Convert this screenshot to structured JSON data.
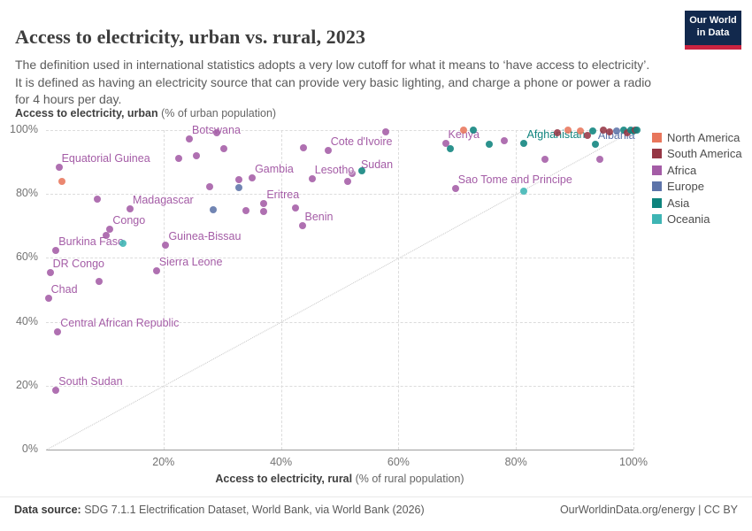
{
  "header": {
    "title": "Access to electricity, urban vs. rural, 2023",
    "subtitle": "The definition used in international statistics adopts a very low cutoff for what it means to ‘have access to electricity’. It is defined as having an electricity source that can provide very basic lighting, and charge a phone or power a radio for 4 hours per day.",
    "logo_line1": "Our World",
    "logo_line2": "in Data"
  },
  "chart_data": {
    "type": "scatter",
    "title": "Access to electricity, urban vs. rural, 2023",
    "x_axis": {
      "label_bold": "Access to electricity, rural",
      "label_rest": " (% of rural population)",
      "range": [
        0,
        100
      ],
      "ticks": [
        {
          "v": 20,
          "label": "20%"
        },
        {
          "v": 40,
          "label": "40%"
        },
        {
          "v": 60,
          "label": "60%"
        },
        {
          "v": 80,
          "label": "80%"
        },
        {
          "v": 100,
          "label": "100%"
        }
      ]
    },
    "y_axis": {
      "label_bold": "Access to electricity, urban",
      "label_rest": " (% of urban population)",
      "range": [
        0,
        100
      ],
      "ticks": [
        {
          "v": 0,
          "label": "0%"
        },
        {
          "v": 20,
          "label": "20%"
        },
        {
          "v": 40,
          "label": "40%"
        },
        {
          "v": 60,
          "label": "60%"
        },
        {
          "v": 80,
          "label": "80%"
        },
        {
          "v": 100,
          "label": "100%"
        }
      ]
    },
    "grid": true,
    "identity_line": true,
    "legend_position": "right",
    "colors": {
      "North America": "#e8765c",
      "South America": "#963745",
      "Africa": "#a45ca6",
      "Europe": "#5d74a9",
      "Asia": "#0e837d",
      "Oceania": "#3eb5b4"
    },
    "legend": [
      "North America",
      "South America",
      "Africa",
      "Europe",
      "Asia",
      "Oceania"
    ],
    "points": [
      {
        "n": "Equatorial Guinea",
        "x": 2.2,
        "y": 88.4,
        "c": "Africa"
      },
      {
        "n": "Botswana",
        "x": 24.4,
        "y": 97.3,
        "c": "Africa"
      },
      {
        "n": "Cote d'Ivoire",
        "x": 48.0,
        "y": 93.7,
        "c": "Africa"
      },
      {
        "n": "Kenya",
        "x": 68.0,
        "y": 95.8,
        "c": "Africa"
      },
      {
        "n": "Afghanistan",
        "x": 81.4,
        "y": 95.9,
        "c": "Asia"
      },
      {
        "n": "Albania",
        "x": 93.5,
        "y": 95.6,
        "c": "Asia",
        "lc": "Europe"
      },
      {
        "n": "Sudan",
        "x": 52.1,
        "y": 86.5,
        "c": "Africa",
        "ldx": 10
      },
      {
        "n": "Lesotho",
        "x": 45.3,
        "y": 84.7,
        "c": "Africa"
      },
      {
        "n": "Gambia",
        "x": 35.1,
        "y": 85.0,
        "c": "Africa"
      },
      {
        "n": "Eritrea",
        "x": 37.1,
        "y": 77.1,
        "c": "Africa"
      },
      {
        "n": "Benin",
        "x": 43.6,
        "y": 70.1,
        "c": "Africa"
      },
      {
        "n": "Madagascar",
        "x": 14.3,
        "y": 75.4,
        "c": "Africa"
      },
      {
        "n": "Congo",
        "x": 10.9,
        "y": 68.9,
        "c": "Africa"
      },
      {
        "n": "Burkina Faso",
        "x": 1.7,
        "y": 62.3,
        "c": "Africa"
      },
      {
        "n": "Guinea-Bissau",
        "x": 20.4,
        "y": 64.1,
        "c": "Africa"
      },
      {
        "n": "DR Congo",
        "x": 0.7,
        "y": 55.5,
        "c": "Africa"
      },
      {
        "n": "Sierra Leone",
        "x": 18.8,
        "y": 56.0,
        "c": "Africa"
      },
      {
        "n": "Chad",
        "x": 0.4,
        "y": 47.4,
        "c": "Africa"
      },
      {
        "n": "Central African Republic",
        "x": 2.0,
        "y": 36.8,
        "c": "Africa"
      },
      {
        "n": "South Sudan",
        "x": 1.7,
        "y": 18.5,
        "c": "Africa"
      },
      {
        "n": "Sao Tome and Principe",
        "x": 69.7,
        "y": 81.7,
        "c": "Africa"
      },
      {
        "x": 2.7,
        "y": 83.8,
        "c": "North America"
      },
      {
        "x": 8.7,
        "y": 78.5,
        "c": "Africa"
      },
      {
        "x": 10.2,
        "y": 66.9,
        "c": "Africa"
      },
      {
        "x": 13.1,
        "y": 64.6,
        "c": "Oceania"
      },
      {
        "x": 9.1,
        "y": 52.6,
        "c": "Africa"
      },
      {
        "x": 29.1,
        "y": 99.3,
        "c": "Africa"
      },
      {
        "x": 25.6,
        "y": 92.1,
        "c": "Africa"
      },
      {
        "x": 22.6,
        "y": 91.2,
        "c": "Africa"
      },
      {
        "x": 30.3,
        "y": 94.2,
        "c": "Africa"
      },
      {
        "x": 27.8,
        "y": 82.2,
        "c": "Africa"
      },
      {
        "x": 32.8,
        "y": 84.5,
        "c": "Africa"
      },
      {
        "x": 32.8,
        "y": 82.0,
        "c": "Europe"
      },
      {
        "x": 28.5,
        "y": 75.0,
        "c": "Europe"
      },
      {
        "x": 34.1,
        "y": 74.8,
        "c": "Africa"
      },
      {
        "x": 37.1,
        "y": 74.5,
        "c": "Africa"
      },
      {
        "x": 42.4,
        "y": 75.7,
        "c": "Africa"
      },
      {
        "x": 51.4,
        "y": 83.8,
        "c": "Africa"
      },
      {
        "x": 53.7,
        "y": 87.2,
        "c": "Asia"
      },
      {
        "x": 43.8,
        "y": 94.5,
        "c": "Africa"
      },
      {
        "x": 57.9,
        "y": 99.5,
        "c": "Africa"
      },
      {
        "x": 68.8,
        "y": 94.2,
        "c": "Asia"
      },
      {
        "x": 71.1,
        "y": 99.9,
        "c": "North America"
      },
      {
        "x": 72.8,
        "y": 99.9,
        "c": "Asia"
      },
      {
        "x": 75.4,
        "y": 95.5,
        "c": "Asia"
      },
      {
        "x": 78.0,
        "y": 96.8,
        "c": "Africa"
      },
      {
        "x": 84.9,
        "y": 90.8,
        "c": "Africa"
      },
      {
        "x": 94.3,
        "y": 90.8,
        "c": "Africa"
      },
      {
        "x": 81.4,
        "y": 81.0,
        "c": "Oceania"
      },
      {
        "x": 87.1,
        "y": 99.2,
        "c": "South America"
      },
      {
        "x": 88.8,
        "y": 99.9,
        "c": "North America"
      },
      {
        "x": 90.9,
        "y": 99.8,
        "c": "North America"
      },
      {
        "x": 92.1,
        "y": 98.3,
        "c": "South America"
      },
      {
        "x": 93.0,
        "y": 99.7,
        "c": "Asia"
      },
      {
        "x": 94.9,
        "y": 99.9,
        "c": "South America"
      },
      {
        "x": 95.9,
        "y": 99.4,
        "c": "South America"
      },
      {
        "x": 97.1,
        "y": 99.7,
        "c": "Europe"
      },
      {
        "x": 98.3,
        "y": 99.9,
        "c": "Asia"
      },
      {
        "x": 99.0,
        "y": 99.3,
        "c": "South America"
      },
      {
        "x": 99.6,
        "y": 99.9,
        "c": "Asia"
      },
      {
        "x": 100.0,
        "y": 99.8,
        "c": "Asia"
      },
      {
        "x": 100.3,
        "y": 99.9,
        "c": "South America"
      },
      {
        "x": 100.6,
        "y": 100.0,
        "c": "Asia"
      }
    ]
  },
  "footer": {
    "source_label": "Data source:",
    "source_text": "SDG 7.1.1 Electrification Dataset, World Bank, via World Bank (2026)",
    "site_link": "OurWorldinData.org/energy",
    "license": "CC BY"
  }
}
